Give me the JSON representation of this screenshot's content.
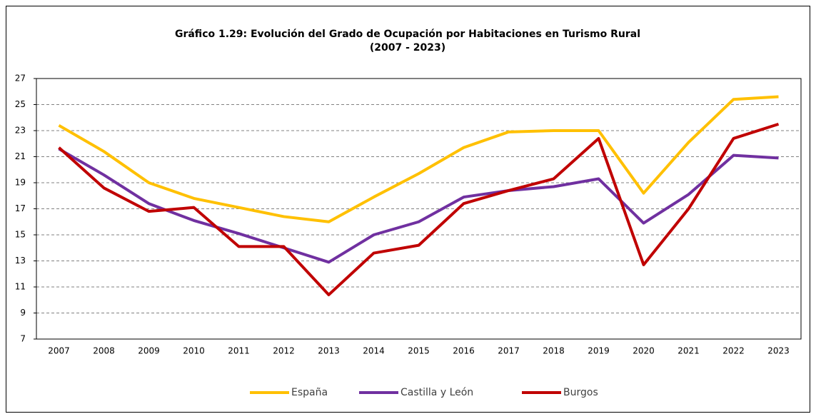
{
  "chart_data": {
    "type": "line",
    "title": "Gráfico 1.29: Evolución del Grado de Ocupación por Habitaciones en Turismo Rural",
    "subtitle": "(2007 - 2023)",
    "categories": [
      "2007",
      "2008",
      "2009",
      "2010",
      "2011",
      "2012",
      "2013",
      "2014",
      "2015",
      "2016",
      "2017",
      "2018",
      "2019",
      "2020",
      "2021",
      "2022",
      "2023"
    ],
    "series": [
      {
        "name": "España",
        "color": "#ffc000",
        "values": [
          23.4,
          21.4,
          19.0,
          17.8,
          17.1,
          16.4,
          16.0,
          17.9,
          19.7,
          21.7,
          22.9,
          23.0,
          23.0,
          18.2,
          22.1,
          25.4,
          25.6
        ]
      },
      {
        "name": "Castilla y León",
        "color": "#7030a0",
        "values": [
          21.6,
          19.6,
          17.4,
          16.1,
          15.1,
          14.0,
          12.9,
          15.0,
          16.0,
          17.9,
          18.4,
          18.7,
          19.3,
          15.9,
          18.1,
          21.1,
          20.9
        ]
      },
      {
        "name": "Burgos",
        "color": "#c00000",
        "values": [
          21.7,
          18.6,
          16.8,
          17.1,
          14.1,
          14.1,
          10.4,
          13.6,
          14.2,
          17.4,
          18.4,
          19.3,
          22.4,
          12.7,
          17.0,
          22.4,
          23.5
        ]
      }
    ],
    "ylim": [
      7,
      27
    ],
    "yticks": [
      7,
      9,
      11,
      13,
      15,
      17,
      19,
      21,
      23,
      25,
      27
    ],
    "grid": true,
    "legend": "bottom"
  }
}
